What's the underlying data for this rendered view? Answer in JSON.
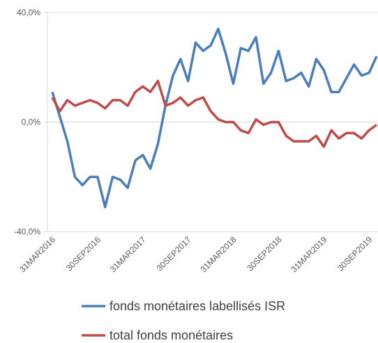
{
  "chart_data": {
    "type": "line",
    "categories": [
      "31MAR2016",
      null,
      null,
      null,
      null,
      null,
      "30SEP2016",
      null,
      null,
      null,
      null,
      null,
      "31MAR2017",
      null,
      null,
      null,
      null,
      null,
      "30SEP2017",
      null,
      null,
      null,
      null,
      null,
      "31MAR2018",
      null,
      null,
      null,
      null,
      null,
      "30SEP2018",
      null,
      null,
      null,
      null,
      null,
      "31MAR2019",
      null,
      null,
      null,
      null,
      null,
      "30SEP2019",
      null
    ],
    "series": [
      {
        "name": "fonds monétaires labellisés ISR",
        "color": "#4a7ebb",
        "values": [
          11,
          2,
          -7,
          -20,
          -23,
          -20,
          -20,
          -31,
          -20,
          -21,
          -24,
          -14,
          -12,
          -17,
          -8,
          6,
          17,
          23,
          15,
          29,
          26,
          28,
          34,
          25,
          14,
          27,
          26,
          31,
          14,
          18,
          26,
          15,
          16,
          18,
          13,
          23,
          19,
          11,
          11,
          16,
          21,
          17,
          18,
          24
        ]
      },
      {
        "name": "total fonds monétaires",
        "color": "#be4b48",
        "values": [
          9,
          4,
          8,
          6,
          7,
          8,
          7,
          5,
          8,
          8,
          6,
          11,
          13,
          11,
          15,
          6,
          7,
          9,
          6,
          8,
          9,
          4,
          1,
          0,
          0,
          -3,
          -4,
          1,
          -1,
          0,
          0,
          -5,
          -7,
          -7,
          -7,
          -5,
          -9,
          -3,
          -6,
          -4,
          -4,
          -6,
          -3,
          -1
        ]
      }
    ],
    "ylim": [
      -40,
      40
    ],
    "yticks": [
      {
        "value": -40,
        "label": "-40,0%"
      },
      {
        "value": 0,
        "label": "0,0%"
      },
      {
        "value": 40,
        "label": "40,0%"
      }
    ],
    "grid": true
  }
}
